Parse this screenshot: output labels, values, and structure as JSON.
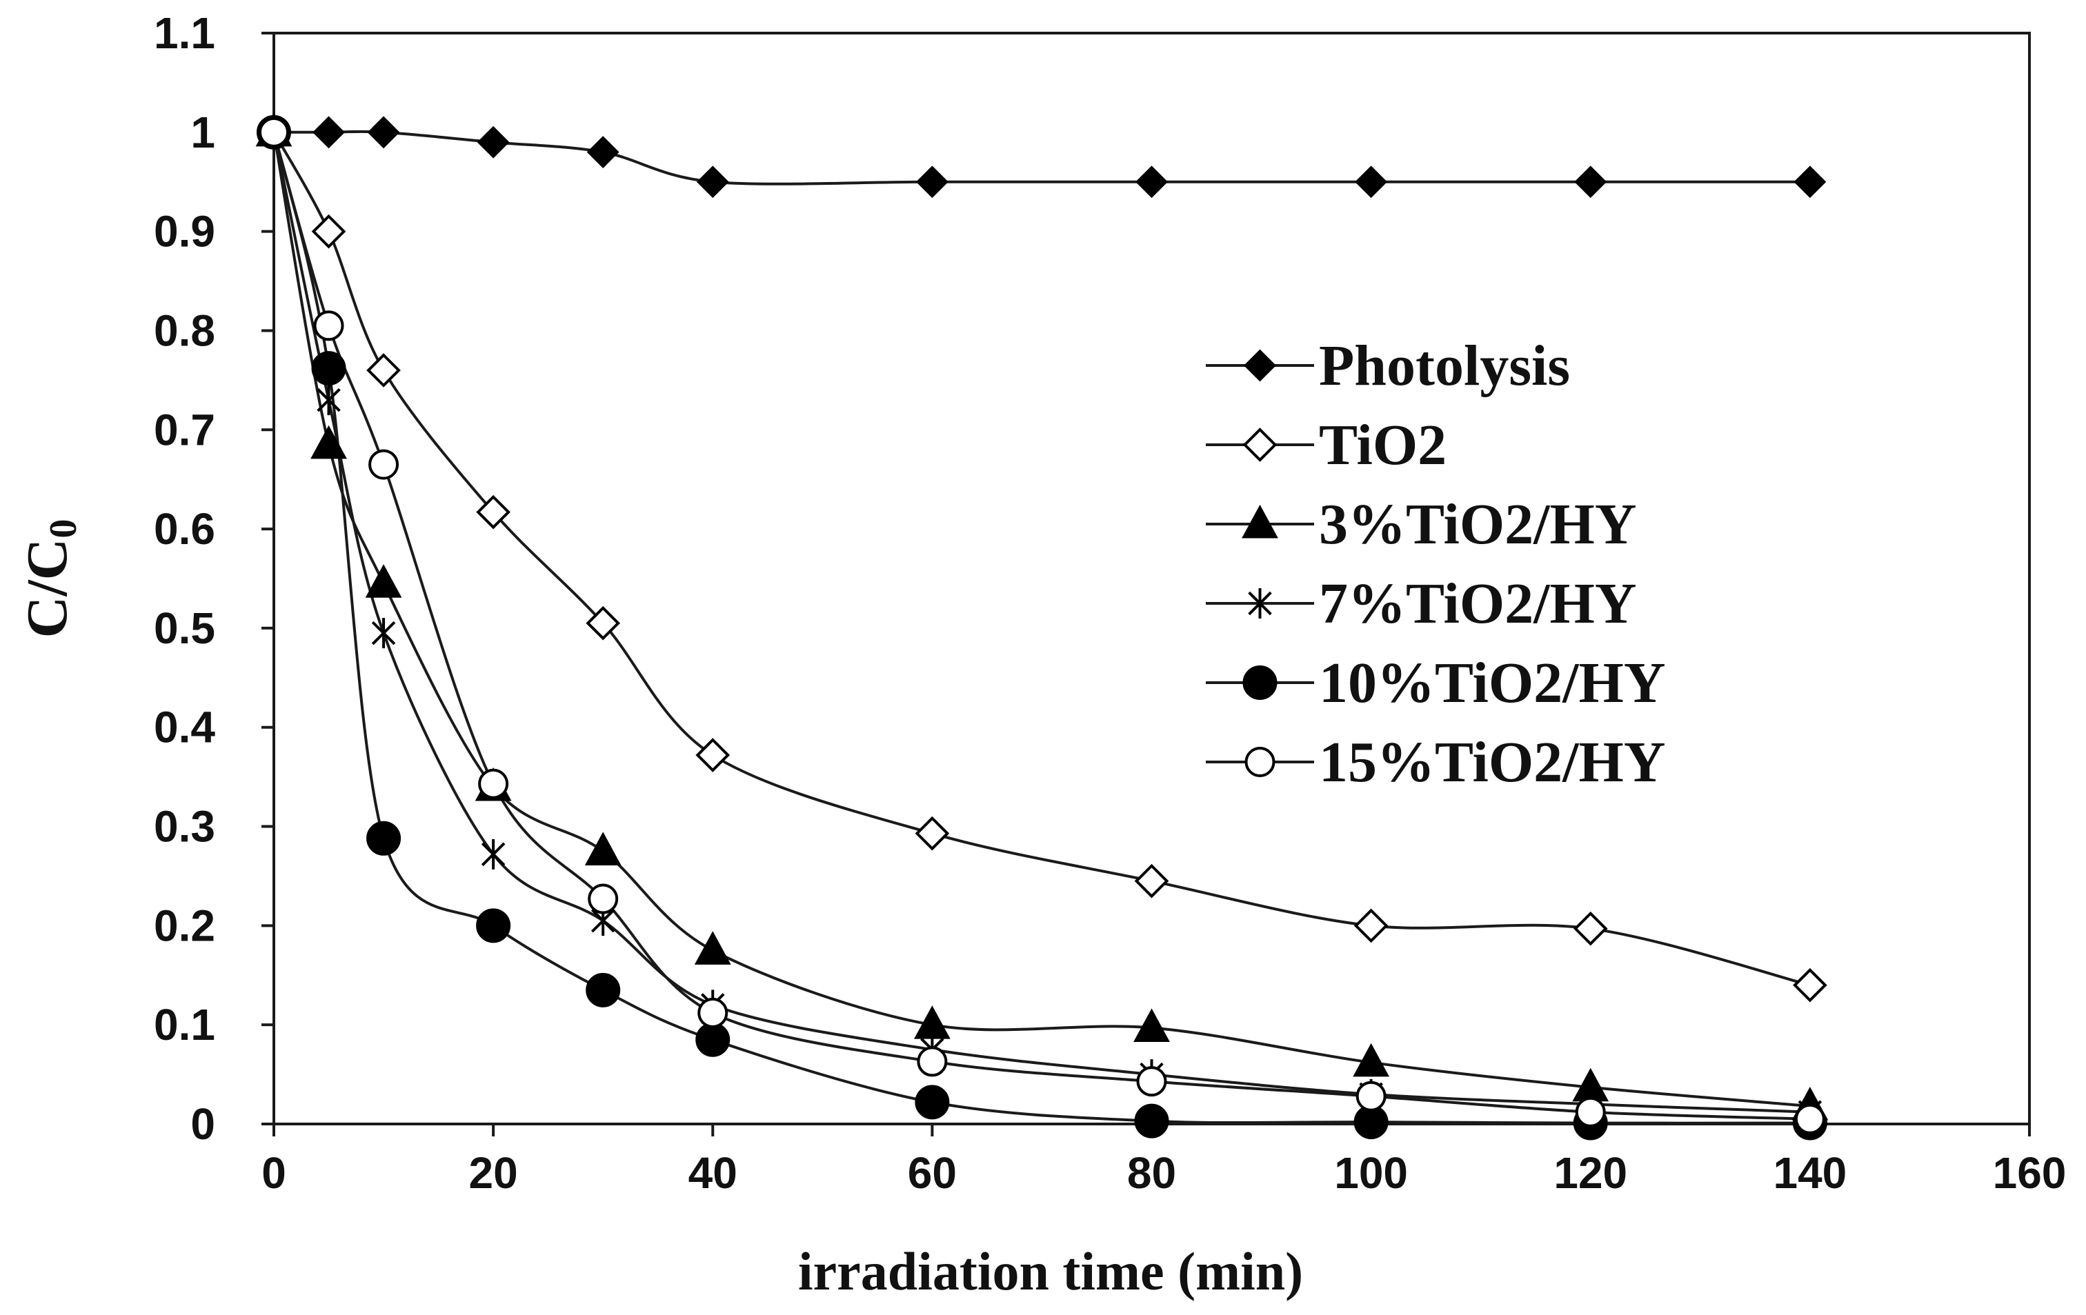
{
  "chart_data": {
    "type": "line",
    "title": "",
    "xlabel": "irradiation time (min)",
    "ylabel_main": "C/C",
    "ylabel_sub": "0",
    "xlim": [
      0,
      160
    ],
    "ylim": [
      0,
      1.1
    ],
    "x_ticks": [
      0,
      20,
      40,
      60,
      80,
      100,
      120,
      140,
      160
    ],
    "y_ticks": [
      0,
      0.1,
      0.2,
      0.3,
      0.4,
      0.5,
      0.6,
      0.7,
      0.8,
      0.9,
      1,
      1.1
    ],
    "x_tick_labels": [
      "0",
      "20",
      "40",
      "60",
      "80",
      "100",
      "120",
      "140",
      "160"
    ],
    "y_tick_labels": [
      "0",
      "0.1",
      "0.2",
      "0.3",
      "0.4",
      "0.5",
      "0.6",
      "0.7",
      "0.8",
      "0.9",
      "1",
      "1.1"
    ],
    "grid": false,
    "legend_position": "right-middle",
    "x": [
      0,
      5,
      10,
      20,
      30,
      40,
      60,
      80,
      100,
      120,
      140
    ],
    "series": [
      {
        "name": "Photolysis",
        "marker": "diamond-filled",
        "values": [
          1.0,
          1.0,
          1.0,
          0.99,
          0.98,
          0.95,
          0.95,
          0.95,
          0.95,
          0.95,
          0.95
        ]
      },
      {
        "name": "TiO2",
        "marker": "diamond-open",
        "values": [
          1.0,
          0.9,
          0.76,
          0.617,
          0.505,
          0.372,
          0.293,
          0.245,
          0.2,
          0.197,
          0.14
        ]
      },
      {
        "name": "3%TiO2/HY",
        "marker": "triangle-filled",
        "values": [
          1.0,
          0.685,
          0.545,
          0.34,
          0.275,
          0.175,
          0.1,
          0.097,
          0.062,
          0.037,
          0.018
        ]
      },
      {
        "name": "7%TiO2/HY",
        "marker": "asterisk",
        "values": [
          1.0,
          0.73,
          0.495,
          0.272,
          0.205,
          0.12,
          0.075,
          0.05,
          0.03,
          0.02,
          0.012
        ]
      },
      {
        "name": "10%TiO2/HY",
        "marker": "circle-filled",
        "values": [
          1.0,
          0.762,
          0.288,
          0.2,
          0.135,
          0.085,
          0.022,
          0.003,
          0.002,
          0.001,
          0.001
        ]
      },
      {
        "name": "15%TiO2/HY",
        "marker": "circle-open",
        "values": [
          1.0,
          0.805,
          0.665,
          0.343,
          0.227,
          0.112,
          0.063,
          0.043,
          0.028,
          0.012,
          0.005
        ]
      }
    ]
  }
}
